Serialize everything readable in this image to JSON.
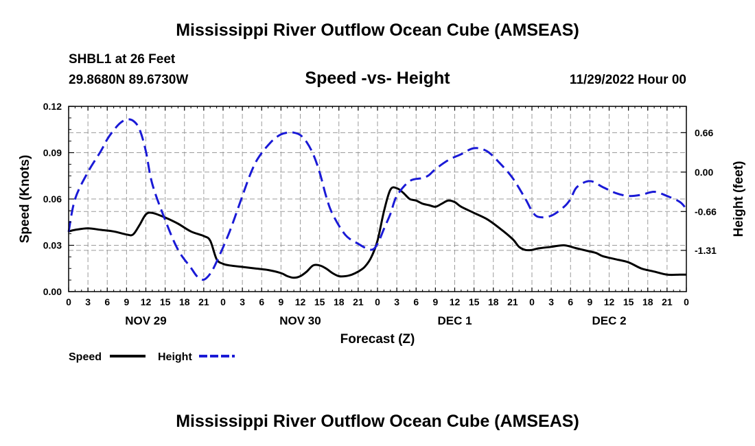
{
  "header": {
    "title": "Mississippi River Outflow Ocean Cube (AMSEAS)",
    "station_line": "SHBL1 at 26 Feet",
    "coords_line": "29.8680N  89.6730W",
    "chart_heading": "Speed -vs- Height",
    "date_line": "11/29/2022 Hour 00"
  },
  "footer": {
    "title": "Mississippi River Outflow Ocean Cube (AMSEAS)"
  },
  "legend": {
    "speed_label": "Speed",
    "height_label": "Height"
  },
  "chart_data": {
    "type": "line",
    "title": "Speed -vs- Height",
    "xlabel": "Forecast (Z)",
    "ylabel": "Speed (Knots)",
    "y2label": "Height (feet)",
    "xlim": [
      0,
      96
    ],
    "ylim": [
      0,
      0.12
    ],
    "y2lim": [
      -2.0,
      1.1
    ],
    "x_tick_step": 3,
    "x_tick_labels": [
      "0",
      "3",
      "6",
      "9",
      "12",
      "15",
      "18",
      "21",
      "0",
      "3",
      "6",
      "9",
      "12",
      "15",
      "18",
      "21",
      "0",
      "3",
      "6",
      "9",
      "12",
      "15",
      "18",
      "21",
      "0",
      "3",
      "6",
      "9",
      "12",
      "15",
      "18",
      "21",
      "0"
    ],
    "date_labels": [
      {
        "x": 12,
        "label": "NOV 29"
      },
      {
        "x": 36,
        "label": "NOV 30"
      },
      {
        "x": 60,
        "label": "DEC 1"
      },
      {
        "x": 84,
        "label": "DEC 2"
      }
    ],
    "y_ticks": [
      0.0,
      0.03,
      0.06,
      0.09,
      0.12
    ],
    "y_tick_labels": [
      "0.00",
      "0.03",
      "0.06",
      "0.09",
      "0.12"
    ],
    "y2_ticks": [
      0.66,
      0.0,
      -0.66,
      -1.31
    ],
    "y2_tick_labels": [
      "0.66",
      "0.00",
      "-0.66",
      "-1.31"
    ],
    "grid": true,
    "legend_position": "bottom-left",
    "series": [
      {
        "name": "Speed",
        "axis": "left",
        "color": "#000000",
        "dash": "solid",
        "x": [
          0,
          1,
          3,
          5,
          7,
          9,
          10,
          11,
          12,
          13,
          15,
          17,
          19,
          21,
          22,
          23,
          24,
          25,
          27,
          29,
          31,
          33,
          34,
          35,
          36,
          37,
          38,
          39,
          40,
          41,
          42,
          43,
          44,
          45,
          46,
          47,
          48,
          49,
          50,
          51,
          52,
          53,
          54,
          55,
          56,
          57,
          58,
          59,
          60,
          61,
          63,
          65,
          67,
          69,
          70,
          71,
          72,
          73,
          75,
          77,
          79,
          81,
          82,
          83,
          85,
          87,
          89,
          91,
          93,
          95,
          96
        ],
        "values": [
          0.039,
          0.04,
          0.041,
          0.04,
          0.039,
          0.037,
          0.037,
          0.043,
          0.05,
          0.051,
          0.048,
          0.044,
          0.039,
          0.036,
          0.033,
          0.021,
          0.018,
          0.017,
          0.016,
          0.015,
          0.014,
          0.012,
          0.01,
          0.009,
          0.01,
          0.013,
          0.017,
          0.017,
          0.015,
          0.012,
          0.01,
          0.01,
          0.011,
          0.013,
          0.016,
          0.022,
          0.033,
          0.052,
          0.066,
          0.067,
          0.064,
          0.06,
          0.059,
          0.057,
          0.056,
          0.055,
          0.057,
          0.059,
          0.058,
          0.055,
          0.051,
          0.047,
          0.041,
          0.034,
          0.029,
          0.027,
          0.027,
          0.028,
          0.029,
          0.03,
          0.028,
          0.026,
          0.025,
          0.023,
          0.021,
          0.019,
          0.015,
          0.013,
          0.011,
          0.011,
          0.011
        ]
      },
      {
        "name": "Height",
        "axis": "right",
        "color": "#1a1ad6",
        "dash": "dashed",
        "x": [
          0,
          1,
          3,
          5,
          6,
          7,
          8,
          9,
          10,
          11,
          12,
          13,
          15,
          17,
          19,
          20,
          21,
          22,
          23,
          25,
          27,
          28,
          29,
          30,
          31,
          32,
          33,
          34,
          35,
          36,
          37,
          38,
          39,
          40,
          41,
          43,
          45,
          47,
          48,
          49,
          50,
          51,
          53,
          55,
          56,
          57,
          59,
          61,
          63,
          65,
          67,
          69,
          71,
          72,
          73,
          75,
          77,
          78,
          79,
          81,
          83,
          85,
          87,
          89,
          91,
          93,
          95,
          96
        ],
        "values": [
          -1.0,
          -0.45,
          0.0,
          0.35,
          0.55,
          0.7,
          0.82,
          0.88,
          0.86,
          0.72,
          0.35,
          -0.2,
          -0.8,
          -1.3,
          -1.6,
          -1.75,
          -1.8,
          -1.7,
          -1.5,
          -1.0,
          -0.4,
          -0.1,
          0.15,
          0.32,
          0.45,
          0.56,
          0.63,
          0.66,
          0.66,
          0.62,
          0.5,
          0.3,
          0.0,
          -0.4,
          -0.7,
          -1.05,
          -1.2,
          -1.3,
          -1.2,
          -0.95,
          -0.7,
          -0.4,
          -0.15,
          -0.1,
          -0.05,
          0.05,
          0.2,
          0.3,
          0.4,
          0.35,
          0.15,
          -0.1,
          -0.45,
          -0.65,
          -0.75,
          -0.73,
          -0.58,
          -0.45,
          -0.25,
          -0.15,
          -0.25,
          -0.35,
          -0.4,
          -0.38,
          -0.33,
          -0.4,
          -0.5,
          -0.62
        ]
      }
    ]
  }
}
